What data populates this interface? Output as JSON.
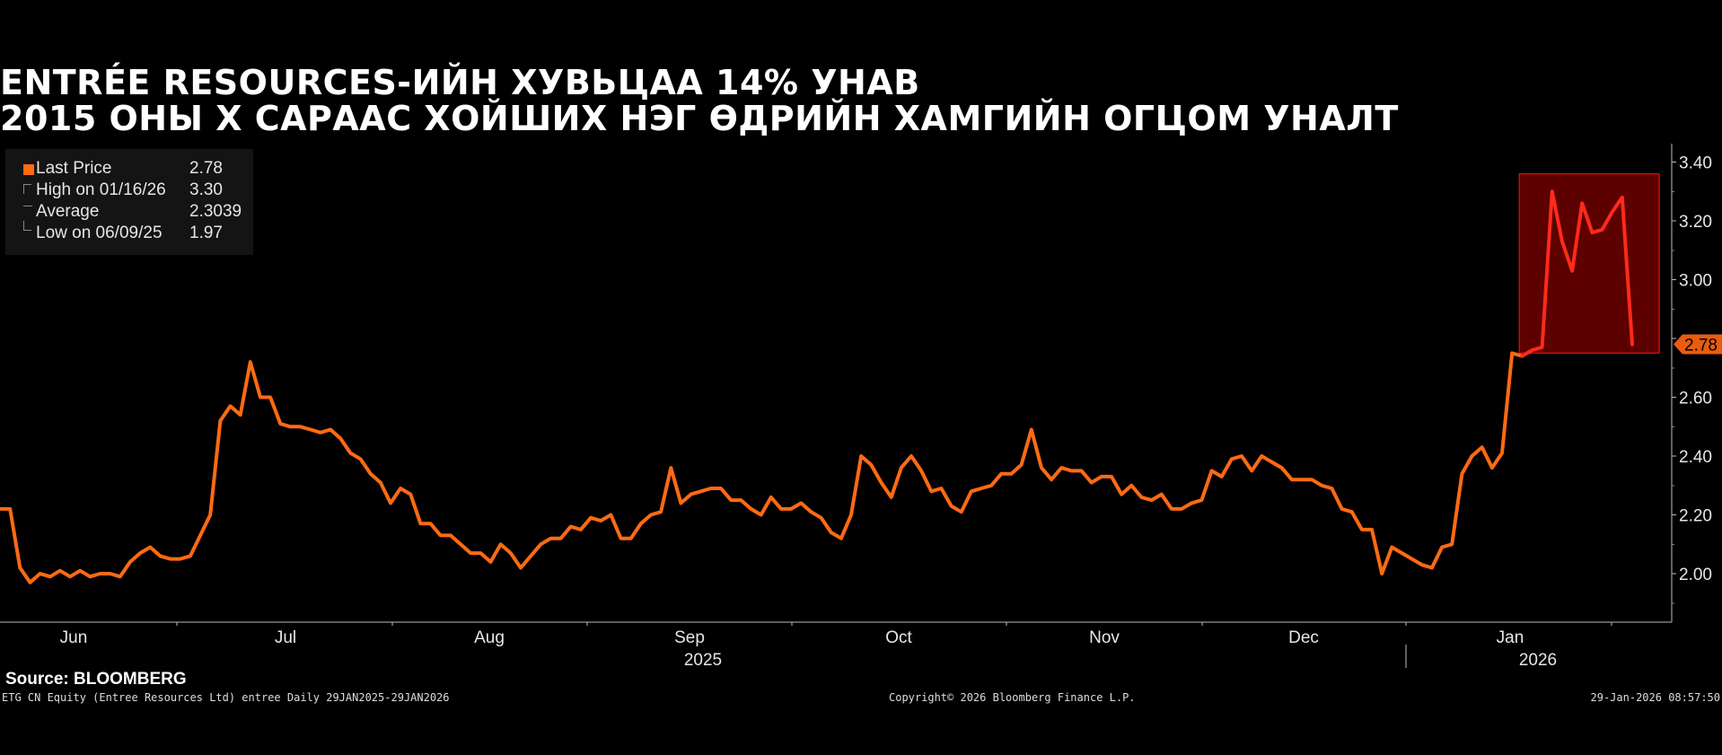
{
  "header": {
    "title_line1": "ENTRÉE RESOURCES-ИЙН ХУВЬЦАА 14% УНАВ",
    "title_line2": "2015 ОНЫ Х САРААС ХОЙШИХ НЭГ ӨДРИЙН ХАМГИЙН ОГЦОМ УНАЛТ"
  },
  "legend": {
    "items": [
      {
        "label": "Last Price",
        "value": "2.78"
      },
      {
        "label": "High on 01/16/26",
        "value": "3.30"
      },
      {
        "label": "Average",
        "value": "2.3039"
      },
      {
        "label": "Low on 06/09/25",
        "value": "1.97"
      }
    ]
  },
  "footer": {
    "source": "Source: BLOOMBERG",
    "ticker_note": "ETG CN Equity (Entree Resources Ltd) entree Daily 29JAN2025-29JAN2026",
    "copyright": "Copyright© 2026 Bloomberg Finance L.P.",
    "timestamp": "29-Jan-2026 08:57:50"
  },
  "colors": {
    "line": "#ff6a13",
    "highlight_fill": "#5c0000",
    "highlight_border": "#c01010",
    "highlight_line": "#ff2a1a",
    "background": "#000000"
  },
  "chart_data": {
    "type": "line",
    "x_tick_labels": [
      "Jun",
      "Jul",
      "Aug",
      "Sep",
      "Oct",
      "Nov",
      "Dec",
      "Jan"
    ],
    "year_labels": [
      "2025",
      "2026"
    ],
    "y_ticks": [
      "2.00",
      "2.20",
      "2.40",
      "2.60",
      "2.80",
      "3.00",
      "3.20",
      "3.40"
    ],
    "ylim": [
      1.83,
      3.45
    ],
    "last_price_tag": "2.78",
    "highlight_range": {
      "y_low": 2.75,
      "y_high": 3.36
    },
    "series": [
      {
        "values": [
          2.22,
          2.22,
          2.02,
          1.97,
          2.0,
          1.99,
          2.01,
          1.99,
          2.01,
          1.99,
          2.0,
          2.0,
          1.99,
          2.04,
          2.07,
          2.09,
          2.06,
          2.05,
          2.05,
          2.06,
          2.13,
          2.2,
          2.52,
          2.57,
          2.54,
          2.72,
          2.6,
          2.6,
          2.51,
          2.5,
          2.5,
          2.49,
          2.48,
          2.49,
          2.46,
          2.41,
          2.39,
          2.34,
          2.31,
          2.24,
          2.29,
          2.27,
          2.17,
          2.17,
          2.13,
          2.13,
          2.1,
          2.07,
          2.07,
          2.04,
          2.1,
          2.07,
          2.02,
          2.06,
          2.1,
          2.12,
          2.12,
          2.16,
          2.15,
          2.19,
          2.18,
          2.2,
          2.12,
          2.12,
          2.17,
          2.2,
          2.21,
          2.36,
          2.24,
          2.27,
          2.28,
          2.29,
          2.29,
          2.25,
          2.25,
          2.22,
          2.2,
          2.26,
          2.22,
          2.22,
          2.24,
          2.21,
          2.19,
          2.14,
          2.12,
          2.2,
          2.4,
          2.37,
          2.31,
          2.26,
          2.36,
          2.4,
          2.35,
          2.28,
          2.29,
          2.23,
          2.21,
          2.28,
          2.29,
          2.3,
          2.34,
          2.34,
          2.37,
          2.49,
          2.36,
          2.32,
          2.36,
          2.35,
          2.35,
          2.31,
          2.33,
          2.33,
          2.27,
          2.3,
          2.26,
          2.25,
          2.27,
          2.22,
          2.22,
          2.24,
          2.25,
          2.35,
          2.33,
          2.39,
          2.4,
          2.35,
          2.4,
          2.38,
          2.36,
          2.32,
          2.32,
          2.32,
          2.3,
          2.29,
          2.22,
          2.21,
          2.15,
          2.15,
          2.0,
          2.09,
          2.07,
          2.05,
          2.03,
          2.02,
          2.09,
          2.1,
          2.34,
          2.4,
          2.43,
          2.36,
          2.41,
          2.75,
          2.74,
          2.76,
          2.77,
          3.3,
          3.13,
          3.03,
          3.26,
          3.16,
          3.17,
          3.23,
          3.28,
          2.78
        ]
      }
    ]
  }
}
